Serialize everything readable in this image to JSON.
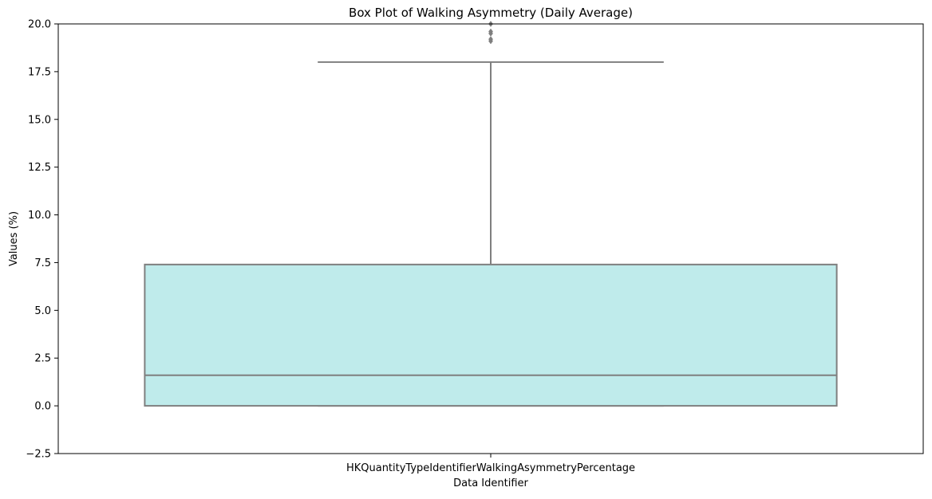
{
  "chart_data": {
    "type": "box",
    "title": "Box Plot of Walking Asymmetry (Daily Average)",
    "xlabel": "Data Identifier",
    "ylabel": "Values (%)",
    "categories": [
      "HKQuantityTypeIdentifierWalkingAsymmetryPercentage"
    ],
    "ylim": [
      -2.5,
      20.0
    ],
    "yticks": [
      -2.5,
      0.0,
      2.5,
      5.0,
      7.5,
      10.0,
      12.5,
      15.0,
      17.5,
      20.0
    ],
    "ytick_labels": [
      "−2.5",
      "0.0",
      "2.5",
      "5.0",
      "7.5",
      "10.0",
      "12.5",
      "15.0",
      "17.5",
      "20.0"
    ],
    "boxes": [
      {
        "category": "HKQuantityTypeIdentifierWalkingAsymmetryPercentage",
        "whisker_low": 0.0,
        "q1": 0.0,
        "median": 1.6,
        "q3": 7.4,
        "whisker_high": 18.0,
        "outliers": [
          19.1,
          19.2,
          19.5,
          19.6,
          20.0
        ]
      }
    ],
    "grid": false,
    "legend": "none"
  },
  "colors": {
    "box_fill": "#bfebeb",
    "box_edge": "#7f7f7f",
    "axis": "#000000",
    "background": "#ffffff"
  }
}
